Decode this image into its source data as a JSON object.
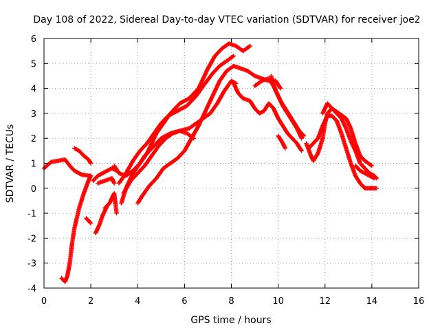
{
  "chart_data": {
    "type": "scatter",
    "title": "Day 108 of 2022, Sidereal Day-to-day VTEC variation (SDTVAR) for receiver joe2",
    "xlabel": "GPS time / hours",
    "ylabel": "SDTVAR / TECUs",
    "xlim": [
      0,
      16
    ],
    "ylim": [
      -4,
      6
    ],
    "xticks": [
      "0",
      "2",
      "4",
      "6",
      "8",
      "10",
      "12",
      "14",
      "16"
    ],
    "yticks": [
      "-4",
      "-3",
      "-2",
      "-1",
      "0",
      "1",
      "2",
      "3",
      "4",
      "5",
      "6"
    ],
    "grid": true,
    "marker": "plus",
    "color": "#ff0000",
    "series": [
      {
        "points": [
          [
            0.0,
            0.8
          ],
          [
            0.3,
            1.05
          ],
          [
            0.6,
            1.1
          ],
          [
            0.9,
            1.15
          ],
          [
            1.1,
            0.9
          ],
          [
            1.3,
            0.7
          ],
          [
            1.6,
            0.55
          ],
          [
            1.9,
            0.5
          ],
          [
            2.0,
            0.5
          ]
        ]
      },
      {
        "points": [
          [
            1.3,
            1.6
          ],
          [
            1.5,
            1.5
          ],
          [
            1.7,
            1.3
          ],
          [
            1.9,
            1.15
          ],
          [
            2.0,
            1.0
          ]
        ]
      },
      {
        "points": [
          [
            0.75,
            -3.6
          ],
          [
            0.9,
            -3.75
          ],
          [
            1.0,
            -3.5
          ],
          [
            1.1,
            -3.0
          ],
          [
            1.2,
            -2.2
          ],
          [
            1.3,
            -1.6
          ],
          [
            1.5,
            -0.8
          ],
          [
            1.7,
            -0.2
          ],
          [
            1.9,
            0.3
          ],
          [
            2.0,
            0.5
          ]
        ]
      },
      {
        "points": [
          [
            1.8,
            -1.2
          ],
          [
            2.0,
            -1.4
          ]
        ]
      },
      {
        "points": [
          [
            2.2,
            -1.8
          ],
          [
            2.35,
            -1.5
          ],
          [
            2.5,
            -1.1
          ],
          [
            2.7,
            -0.7
          ]
        ]
      },
      {
        "points": [
          [
            2.1,
            0.3
          ],
          [
            2.3,
            0.5
          ],
          [
            2.5,
            0.6
          ],
          [
            2.7,
            0.7
          ],
          [
            2.9,
            0.8
          ],
          [
            3.1,
            0.7
          ]
        ]
      },
      {
        "points": [
          [
            2.3,
            0.2
          ],
          [
            2.6,
            0.3
          ],
          [
            2.9,
            0.4
          ],
          [
            3.0,
            0.2
          ]
        ]
      },
      {
        "points": [
          [
            2.6,
            -0.8
          ],
          [
            2.8,
            -0.6
          ],
          [
            2.9,
            -0.4
          ],
          [
            3.0,
            -0.2
          ],
          [
            3.1,
            -1.0
          ]
        ]
      },
      {
        "points": [
          [
            3.0,
            0.9
          ],
          [
            3.2,
            0.6
          ],
          [
            3.5,
            0.5
          ],
          [
            3.8,
            0.7
          ],
          [
            4.1,
            1.0
          ],
          [
            4.4,
            1.4
          ],
          [
            4.8,
            2.2
          ],
          [
            5.1,
            2.6
          ],
          [
            5.4,
            3.0
          ],
          [
            5.8,
            3.4
          ],
          [
            6.2,
            3.6
          ],
          [
            6.6,
            4.0
          ],
          [
            7.0,
            4.8
          ],
          [
            7.3,
            5.3
          ],
          [
            7.6,
            5.6
          ],
          [
            7.9,
            5.8
          ],
          [
            8.2,
            5.7
          ],
          [
            8.5,
            5.5
          ],
          [
            8.8,
            5.7
          ]
        ]
      },
      {
        "points": [
          [
            3.3,
            -0.6
          ],
          [
            3.5,
            0.0
          ],
          [
            3.8,
            0.6
          ],
          [
            4.1,
            1.0
          ],
          [
            4.3,
            1.3
          ],
          [
            4.6,
            1.6
          ],
          [
            5.0,
            2.0
          ],
          [
            5.4,
            2.2
          ],
          [
            5.8,
            2.3
          ],
          [
            6.2,
            2.4
          ],
          [
            6.5,
            2.6
          ],
          [
            6.8,
            2.8
          ],
          [
            7.1,
            3.0
          ],
          [
            7.4,
            3.4
          ],
          [
            7.7,
            3.9
          ],
          [
            8.0,
            4.3
          ],
          [
            8.2,
            4.2
          ]
        ]
      },
      {
        "points": [
          [
            3.4,
            -0.2
          ],
          [
            3.7,
            0.3
          ],
          [
            4.0,
            0.6
          ],
          [
            4.3,
            0.9
          ],
          [
            4.6,
            1.3
          ],
          [
            4.9,
            1.7
          ],
          [
            5.2,
            2.0
          ],
          [
            5.5,
            2.2
          ],
          [
            5.8,
            2.3
          ],
          [
            6.1,
            2.2
          ],
          [
            6.4,
            2.0
          ]
        ]
      },
      {
        "points": [
          [
            3.2,
            0.2
          ],
          [
            3.5,
            0.6
          ],
          [
            3.8,
            1.1
          ],
          [
            4.1,
            1.5
          ],
          [
            4.4,
            1.8
          ],
          [
            4.7,
            2.2
          ],
          [
            5.0,
            2.6
          ],
          [
            5.3,
            2.9
          ],
          [
            5.7,
            3.1
          ],
          [
            6.1,
            3.3
          ],
          [
            6.5,
            3.7
          ],
          [
            6.8,
            4.1
          ],
          [
            7.2,
            4.6
          ],
          [
            7.5,
            4.9
          ],
          [
            7.8,
            5.1
          ],
          [
            8.1,
            5.3
          ]
        ]
      },
      {
        "points": [
          [
            4.0,
            -0.6
          ],
          [
            4.2,
            -0.3
          ],
          [
            4.5,
            0.1
          ],
          [
            4.8,
            0.4
          ],
          [
            5.1,
            0.8
          ],
          [
            5.4,
            1.0
          ],
          [
            5.7,
            1.2
          ],
          [
            6.0,
            1.5
          ],
          [
            6.3,
            2.0
          ],
          [
            6.6,
            2.5
          ],
          [
            6.9,
            3.1
          ],
          [
            7.2,
            3.7
          ],
          [
            7.5,
            4.3
          ],
          [
            7.8,
            4.7
          ],
          [
            8.1,
            4.9
          ],
          [
            8.4,
            4.8
          ],
          [
            8.7,
            4.7
          ],
          [
            9.0,
            4.5
          ],
          [
            9.3,
            4.4
          ],
          [
            9.6,
            4.3
          ],
          [
            9.9,
            4.3
          ],
          [
            10.1,
            4.0
          ]
        ]
      },
      {
        "points": [
          [
            8.1,
            4.2
          ],
          [
            8.3,
            3.8
          ],
          [
            8.5,
            3.6
          ],
          [
            8.8,
            3.5
          ],
          [
            9.0,
            3.2
          ],
          [
            9.2,
            3.0
          ],
          [
            9.4,
            3.1
          ],
          [
            9.6,
            3.4
          ],
          [
            9.8,
            3.2
          ],
          [
            10.0,
            2.8
          ],
          [
            10.2,
            2.5
          ],
          [
            10.4,
            2.2
          ],
          [
            10.6,
            2.0
          ],
          [
            10.8,
            1.8
          ],
          [
            11.0,
            1.5
          ]
        ]
      },
      {
        "points": [
          [
            9.0,
            4.1
          ],
          [
            9.3,
            4.3
          ],
          [
            9.6,
            4.4
          ],
          [
            9.8,
            4.1
          ],
          [
            10.0,
            3.7
          ],
          [
            10.2,
            3.3
          ],
          [
            10.4,
            3.0
          ],
          [
            10.6,
            2.7
          ],
          [
            10.8,
            2.4
          ],
          [
            11.0,
            2.0
          ]
        ]
      },
      {
        "points": [
          [
            9.7,
            4.5
          ],
          [
            9.9,
            3.9
          ],
          [
            10.1,
            3.5
          ],
          [
            10.3,
            3.2
          ],
          [
            10.5,
            2.9
          ],
          [
            10.7,
            2.6
          ],
          [
            10.9,
            2.3
          ],
          [
            11.1,
            2.1
          ]
        ]
      },
      {
        "points": [
          [
            10.0,
            2.1
          ],
          [
            10.2,
            1.8
          ],
          [
            10.3,
            1.6
          ]
        ]
      },
      {
        "points": [
          [
            11.2,
            1.8
          ],
          [
            11.4,
            1.3
          ],
          [
            11.5,
            1.1
          ],
          [
            11.7,
            1.4
          ],
          [
            11.9,
            2.0
          ],
          [
            12.0,
            2.6
          ],
          [
            12.1,
            3.0
          ],
          [
            12.3,
            3.2
          ],
          [
            12.5,
            3.0
          ],
          [
            12.7,
            2.8
          ],
          [
            12.9,
            2.4
          ],
          [
            13.1,
            1.9
          ],
          [
            13.3,
            1.5
          ],
          [
            13.5,
            1.0
          ],
          [
            13.7,
            0.8
          ],
          [
            13.9,
            0.6
          ],
          [
            14.1,
            0.5
          ],
          [
            14.2,
            0.4
          ]
        ]
      },
      {
        "points": [
          [
            11.3,
            1.6
          ],
          [
            11.5,
            1.8
          ],
          [
            11.7,
            2.0
          ],
          [
            11.9,
            2.5
          ],
          [
            12.1,
            2.9
          ],
          [
            12.3,
            2.9
          ],
          [
            12.5,
            2.7
          ],
          [
            12.7,
            2.2
          ],
          [
            12.9,
            1.6
          ],
          [
            13.1,
            1.0
          ],
          [
            13.3,
            0.5
          ],
          [
            13.5,
            0.2
          ],
          [
            13.7,
            0.0
          ],
          [
            13.9,
            0.0
          ],
          [
            14.0,
            0.0
          ],
          [
            14.2,
            0.0
          ]
        ]
      },
      {
        "points": [
          [
            11.9,
            3.0
          ],
          [
            12.1,
            3.4
          ],
          [
            12.3,
            3.2
          ],
          [
            12.6,
            3.0
          ],
          [
            12.9,
            2.8
          ],
          [
            13.1,
            2.4
          ],
          [
            13.3,
            1.8
          ],
          [
            13.5,
            1.3
          ],
          [
            13.7,
            1.1
          ],
          [
            14.0,
            0.9
          ]
        ]
      },
      {
        "points": [
          [
            13.3,
            0.9
          ],
          [
            13.5,
            0.7
          ],
          [
            13.7,
            0.6
          ],
          [
            13.9,
            0.5
          ],
          [
            14.1,
            0.4
          ]
        ]
      }
    ]
  }
}
